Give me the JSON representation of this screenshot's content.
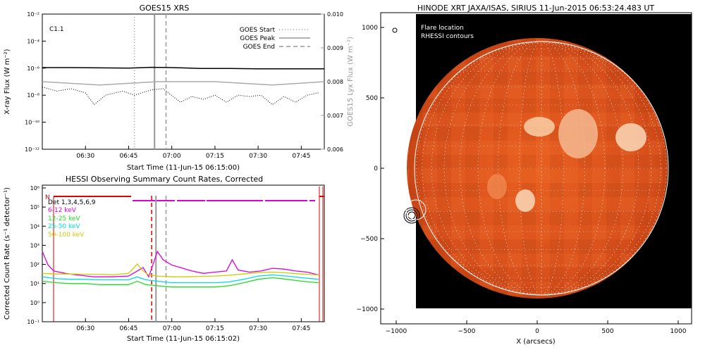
{
  "chart_data": [
    {
      "type": "line",
      "title": "GOES15 XRS",
      "xlabel": "Start Time (11-Jun-15 06:15:00)",
      "ylabel": "X-ray Flux (W m⁻²)",
      "y2label": "GOES15 Lyx Flux (W m⁻²)",
      "annotation": "C1.1",
      "yscale": "log",
      "ylim": [
        1e-12,
        0.01
      ],
      "y2lim": [
        0.006,
        0.01
      ],
      "xlim_min": [
        0,
        98
      ],
      "xticks": [
        {
          "min": 15,
          "label": "06:30"
        },
        {
          "min": 30,
          "label": "06:45"
        },
        {
          "min": 45,
          "label": "07:00"
        },
        {
          "min": 60,
          "label": "07:15"
        },
        {
          "min": 75,
          "label": "07:30"
        },
        {
          "min": 90,
          "label": "07:45"
        }
      ],
      "yticks": [
        "10⁻²",
        "10⁻⁴",
        "10⁻⁶",
        "10⁻⁸",
        "10⁻¹⁰",
        "10⁻¹²"
      ],
      "y2ticks": [
        "0.010",
        "0.009",
        "0.008",
        "0.007",
        "0.006"
      ],
      "legend": [
        {
          "label": "GOES Start",
          "minute": 32,
          "style": "dotted",
          "color": "#999999"
        },
        {
          "label": "GOES Peak",
          "minute": 39,
          "style": "solid",
          "color": "#999999"
        },
        {
          "label": "GOES End",
          "minute": 43,
          "style": "dashed",
          "color": "#999999"
        }
      ],
      "series": [
        {
          "color": "#000000",
          "x": [
            0,
            10,
            20,
            30,
            38,
            45,
            55,
            65,
            75,
            85,
            98
          ],
          "y": [
            1.1e-06,
            1.1e-06,
            1.05e-06,
            1e-06,
            1.15e-06,
            1.1e-06,
            9.5e-07,
            9.5e-07,
            9e-07,
            9e-07,
            9e-07
          ]
        },
        {
          "color": "#aaaaaa",
          "x": [
            0,
            20,
            40,
            60,
            80,
            98
          ],
          "y": [
            0.008,
            0.0079,
            0.008,
            0.008,
            0.0079,
            0.008
          ],
          "axis": "y2"
        },
        {
          "color": "#000000",
          "style": "dotted",
          "x": [
            0,
            5,
            10,
            15,
            18,
            22,
            28,
            32,
            38,
            42,
            48,
            52,
            56,
            60,
            64,
            68,
            72,
            76,
            80,
            84,
            88,
            92,
            96
          ],
          "y": [
            4e-08,
            2e-08,
            3e-08,
            1.5e-08,
            2e-09,
            1e-08,
            2e-08,
            1e-08,
            2.5e-08,
            3e-08,
            3e-09,
            8e-09,
            5e-09,
            1e-08,
            3e-09,
            1e-08,
            8e-09,
            1e-08,
            2e-09,
            8e-09,
            3e-09,
            1e-08,
            1.5e-08
          ]
        }
      ]
    },
    {
      "type": "line",
      "title": "HESSI Observing Summary Count Rates, Corrected",
      "xlabel": "Start Time (11-Jun-15 06:15:02)",
      "ylabel": "Corrected Count Rate (s⁻¹ detector⁻¹)",
      "yscale": "log",
      "ylim": [
        0.1,
        1000000
      ],
      "xlim_min": [
        0,
        98
      ],
      "xticks": [
        {
          "min": 15,
          "label": "06:30"
        },
        {
          "min": 30,
          "label": "06:45"
        },
        {
          "min": 45,
          "label": "07:00"
        },
        {
          "min": 60,
          "label": "07:15"
        },
        {
          "min": 75,
          "label": "07:30"
        },
        {
          "min": 90,
          "label": "07:45"
        }
      ],
      "yticks": [
        "10⁶",
        "10⁵",
        "10⁴",
        "10³",
        "10²",
        "10¹",
        "10⁰",
        "10⁻¹"
      ],
      "legend_text": [
        "Det 1,3,4,5,6,9",
        "6-12 keV",
        "12-25 keV",
        "25-50 keV",
        "50-100 keV"
      ],
      "flag_label": "N",
      "markers": [
        {
          "minute": 38,
          "style": "dashed",
          "color": "#dd0000"
        },
        {
          "minute": 39.5,
          "style": "solid",
          "color": "#999999"
        },
        {
          "minute": 43,
          "style": "dashed",
          "color": "#999999"
        }
      ],
      "series": [
        {
          "name": "6-12 keV",
          "color": "#dd00dd",
          "x": [
            0,
            2,
            4,
            8,
            12,
            18,
            24,
            30,
            33,
            35,
            37,
            40,
            42,
            45,
            48,
            52,
            56,
            60,
            64,
            66,
            68,
            72,
            76,
            80,
            84,
            88,
            92,
            96
          ],
          "y": [
            400,
            80,
            40,
            30,
            25,
            20,
            20,
            22,
            40,
            60,
            20,
            400,
            150,
            80,
            60,
            40,
            30,
            35,
            40,
            150,
            45,
            35,
            40,
            55,
            50,
            40,
            35,
            25
          ]
        },
        {
          "name": "12-25 keV",
          "color": "#22dd22",
          "x": [
            0,
            5,
            10,
            15,
            20,
            25,
            30,
            33,
            36,
            40,
            45,
            50,
            55,
            60,
            65,
            70,
            75,
            80,
            85,
            90,
            96
          ],
          "y": [
            12,
            10,
            9,
            9,
            8,
            8,
            8,
            12,
            8,
            7,
            6,
            6,
            6,
            6,
            7,
            10,
            15,
            18,
            15,
            12,
            10
          ]
        },
        {
          "name": "25-50 keV",
          "color": "#00dddd",
          "x": [
            0,
            5,
            10,
            15,
            20,
            25,
            30,
            33,
            36,
            40,
            45,
            50,
            55,
            60,
            65,
            70,
            75,
            80,
            85,
            90,
            96
          ],
          "y": [
            20,
            16,
            15,
            15,
            14,
            14,
            14,
            20,
            14,
            12,
            10,
            10,
            10,
            10,
            11,
            15,
            22,
            25,
            22,
            18,
            15
          ]
        },
        {
          "name": "50-100 keV",
          "color": "#cccc00",
          "x": [
            0,
            5,
            10,
            15,
            20,
            25,
            30,
            33,
            35,
            37,
            40,
            45,
            50,
            55,
            60,
            65,
            70,
            75,
            80,
            85,
            90,
            96
          ],
          "y": [
            30,
            28,
            28,
            27,
            27,
            26,
            30,
            90,
            40,
            25,
            22,
            20,
            20,
            21,
            22,
            24,
            28,
            33,
            35,
            32,
            28,
            25
          ]
        }
      ]
    },
    {
      "type": "image",
      "title": "HINODE XRT JAXA/ISAS, SIRIUS 11-Jun-2015 06:53:24.483 UT",
      "xlabel": "X (arcsecs)",
      "xlim": [
        -1100,
        1100
      ],
      "ylim": [
        -1100,
        1100
      ],
      "xticks": [
        -1000,
        -500,
        0,
        500,
        1000
      ],
      "yticks": [
        1000,
        500,
        0,
        -500,
        -1000
      ],
      "legend_text": [
        "Flare location",
        "RHESSI contours"
      ],
      "solar_radius": 945,
      "flare_location": [
        -935,
        -330
      ]
    }
  ]
}
